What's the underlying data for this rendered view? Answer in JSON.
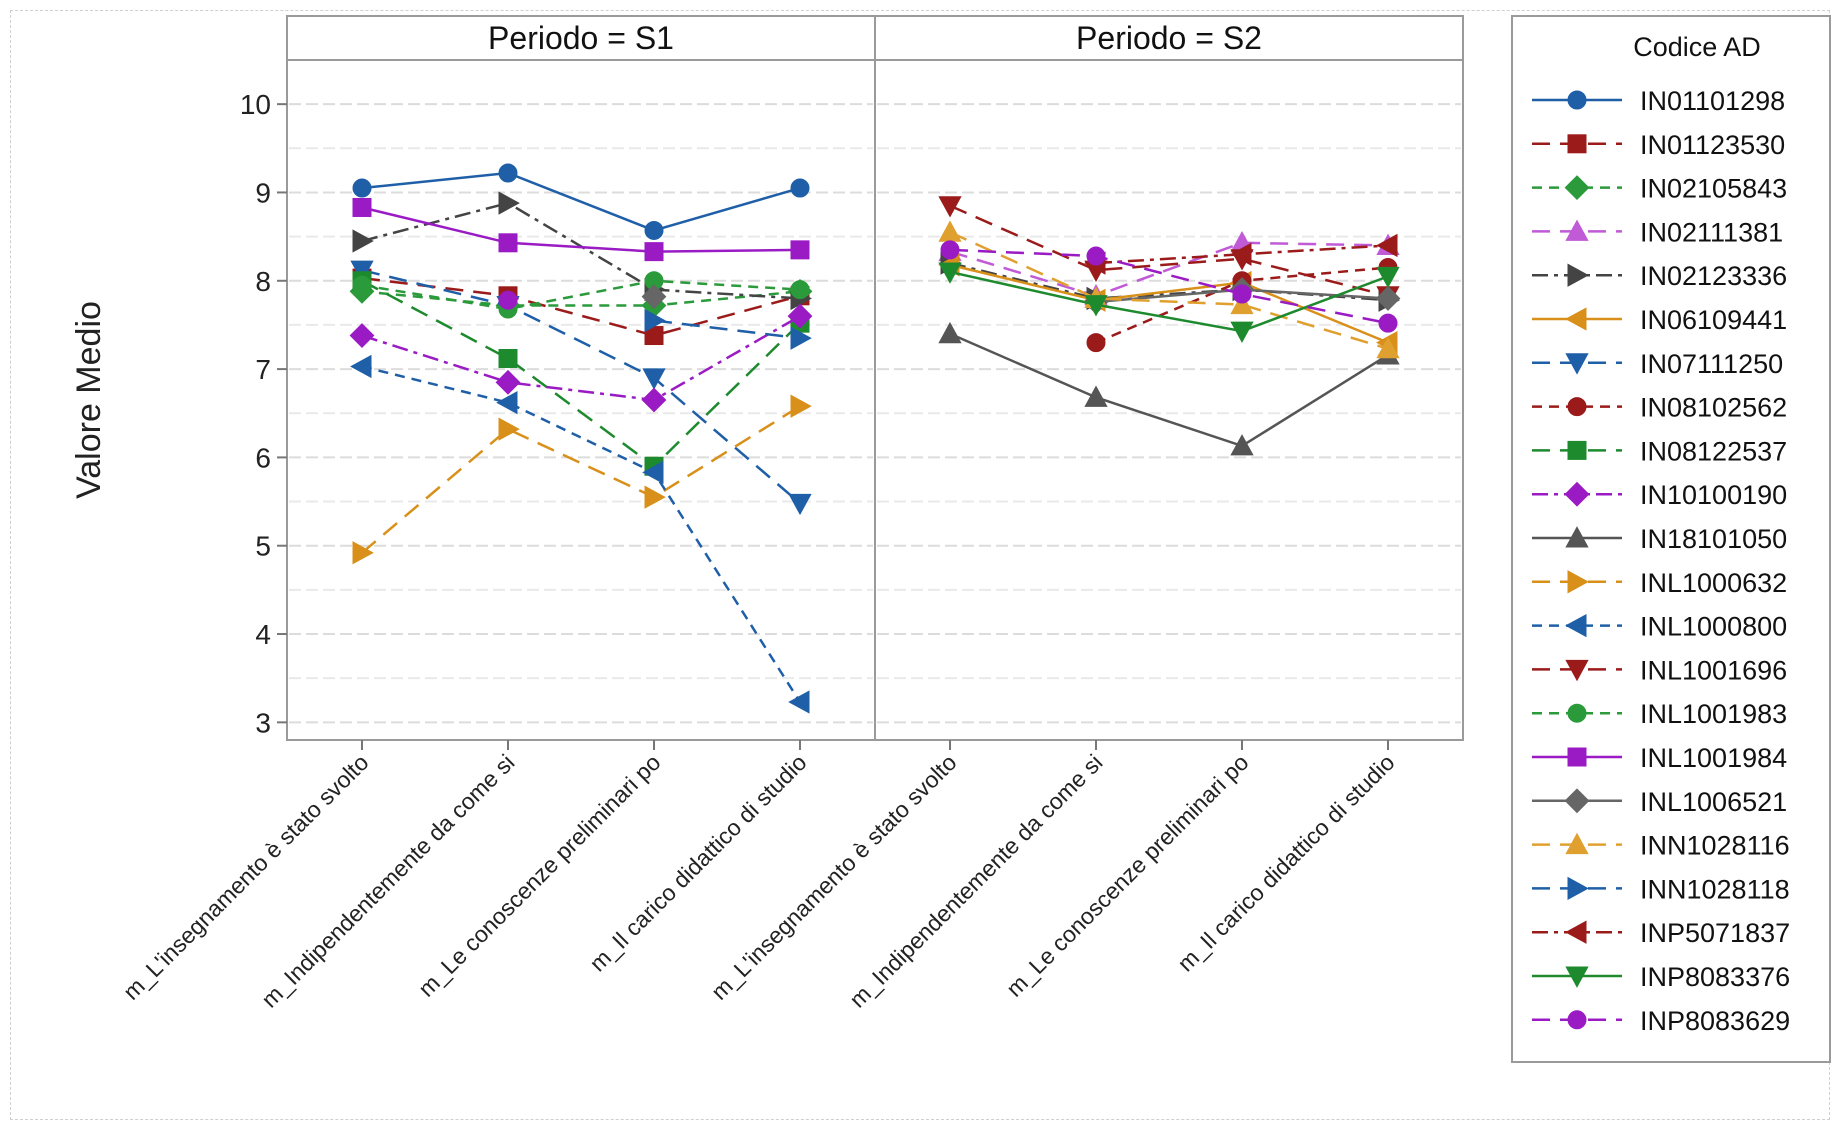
{
  "chart_data": {
    "type": "line",
    "ylabel": "Valore Medio",
    "ylim": [
      2.8,
      10.5
    ],
    "yticks": [
      3,
      4,
      5,
      6,
      7,
      8,
      9,
      10
    ],
    "grid": true,
    "panels": [
      {
        "title": "Periodo = S1"
      },
      {
        "title": "Periodo = S2"
      }
    ],
    "categories": [
      "m_L'insegnamento è stato svolto",
      "m_Indipendentemente da come si",
      "m_Le conoscenze preliminari po",
      "m_Il carico didattico di studio"
    ],
    "legend": {
      "title": "Codice AD",
      "position": "right"
    },
    "series": [
      {
        "name": "IN01101298",
        "color": "#1f5fa8",
        "marker": "circle",
        "dash": "solid",
        "S1": [
          9.05,
          9.22,
          8.57,
          9.05
        ],
        "S2": [
          null,
          null,
          null,
          null
        ]
      },
      {
        "name": "IN01123530",
        "color": "#9b1b1b",
        "marker": "square",
        "dash": "longdash",
        "S1": [
          8.03,
          7.83,
          7.38,
          7.83
        ],
        "S2": [
          null,
          null,
          null,
          null
        ]
      },
      {
        "name": "IN02105843",
        "color": "#2a9a3a",
        "marker": "diamond",
        "dash": "dash",
        "S1": [
          7.88,
          7.72,
          7.72,
          7.88
        ],
        "S2": [
          null,
          null,
          null,
          null
        ]
      },
      {
        "name": "IN02111381",
        "color": "#c05ad6",
        "marker": "triangle-up",
        "dash": "longdash",
        "S1": [
          null,
          null,
          null,
          null
        ],
        "S2": [
          8.33,
          7.83,
          8.43,
          8.4
        ]
      },
      {
        "name": "IN02123336",
        "color": "#444444",
        "marker": "triangle-right",
        "dash": "dashdot",
        "S1": [
          8.45,
          8.88,
          7.9,
          7.8
        ],
        "S2": [
          8.2,
          7.8,
          7.9,
          7.78
        ]
      },
      {
        "name": "IN06109441",
        "color": "#d9901a",
        "marker": "triangle-left",
        "dash": "solid",
        "S1": [
          null,
          null,
          null,
          null
        ],
        "S2": [
          8.18,
          7.78,
          7.98,
          7.3
        ]
      },
      {
        "name": "IN07111250",
        "color": "#1f5fa8",
        "marker": "triangle-down",
        "dash": "longdash",
        "S1": [
          8.12,
          7.72,
          6.9,
          5.48
        ],
        "S2": [
          null,
          null,
          null,
          null
        ]
      },
      {
        "name": "IN08102562",
        "color": "#9b1b1b",
        "marker": "circle",
        "dash": "dash",
        "S1": [
          null,
          null,
          null,
          null
        ],
        "S2": [
          null,
          7.3,
          8.0,
          8.15
        ]
      },
      {
        "name": "IN08122537",
        "color": "#1e8a2e",
        "marker": "square",
        "dash": "longdash",
        "S1": [
          8.0,
          7.12,
          5.9,
          7.52
        ],
        "S2": [
          null,
          null,
          null,
          null
        ]
      },
      {
        "name": "IN10100190",
        "color": "#9a1bc4",
        "marker": "diamond",
        "dash": "dashdot",
        "S1": [
          7.38,
          6.85,
          6.65,
          7.6
        ],
        "S2": [
          null,
          null,
          null,
          null
        ]
      },
      {
        "name": "IN18101050",
        "color": "#555555",
        "marker": "triangle-up",
        "dash": "solid",
        "S1": [
          null,
          null,
          null,
          null
        ],
        "S2": [
          7.4,
          6.68,
          6.13,
          7.16
        ]
      },
      {
        "name": "INL1000632",
        "color": "#d9901a",
        "marker": "triangle-right",
        "dash": "longdash",
        "S1": [
          4.92,
          6.32,
          5.55,
          6.58
        ],
        "S2": [
          null,
          null,
          null,
          null
        ]
      },
      {
        "name": "INL1000800",
        "color": "#1f5fa8",
        "marker": "triangle-left",
        "dash": "dash",
        "S1": [
          7.03,
          6.62,
          5.83,
          3.23
        ],
        "S2": [
          null,
          null,
          null,
          null
        ]
      },
      {
        "name": "INL1001696",
        "color": "#9b1b1b",
        "marker": "triangle-down",
        "dash": "longdash",
        "S1": [
          null,
          null,
          null,
          null
        ],
        "S2": [
          8.85,
          8.12,
          8.25,
          7.83
        ]
      },
      {
        "name": "INL1001983",
        "color": "#2a9a3a",
        "marker": "circle",
        "dash": "dash",
        "S1": [
          7.95,
          7.68,
          8.0,
          7.9
        ],
        "S2": [
          null,
          null,
          null,
          null
        ]
      },
      {
        "name": "INL1001984",
        "color": "#9a1bc4",
        "marker": "square",
        "dash": "solid",
        "S1": [
          8.83,
          8.43,
          8.33,
          8.35
        ],
        "S2": [
          null,
          null,
          null,
          null
        ]
      },
      {
        "name": "INL1006521",
        "color": "#666666",
        "marker": "diamond",
        "dash": "solid",
        "S1": [
          null,
          null,
          7.82,
          null
        ],
        "S2": [
          null,
          7.76,
          7.9,
          7.8
        ]
      },
      {
        "name": "INN1028116",
        "color": "#e0a030",
        "marker": "triangle-up",
        "dash": "longdash",
        "S1": [
          null,
          null,
          null,
          null
        ],
        "S2": [
          8.55,
          7.8,
          7.73,
          7.23
        ]
      },
      {
        "name": "INN1028118",
        "color": "#1f5fa8",
        "marker": "triangle-right",
        "dash": "longdash",
        "S1": [
          null,
          null,
          7.55,
          7.35
        ],
        "S2": [
          null,
          null,
          null,
          null
        ]
      },
      {
        "name": "INP5071837",
        "color": "#9b1b1b",
        "marker": "triangle-left",
        "dash": "dashdot",
        "S1": [
          null,
          null,
          null,
          null
        ],
        "S2": [
          null,
          8.2,
          8.3,
          8.4
        ]
      },
      {
        "name": "INP8083376",
        "color": "#1e8a2e",
        "marker": "triangle-down",
        "dash": "solid",
        "S1": [
          null,
          null,
          null,
          null
        ],
        "S2": [
          8.1,
          7.73,
          7.43,
          8.05
        ]
      },
      {
        "name": "INP8083629",
        "color": "#9a1bc4",
        "marker": "circle",
        "dash": "longdash",
        "S1": [
          null,
          7.78,
          null,
          null
        ],
        "S2": [
          8.35,
          8.28,
          7.85,
          7.52
        ]
      }
    ]
  }
}
